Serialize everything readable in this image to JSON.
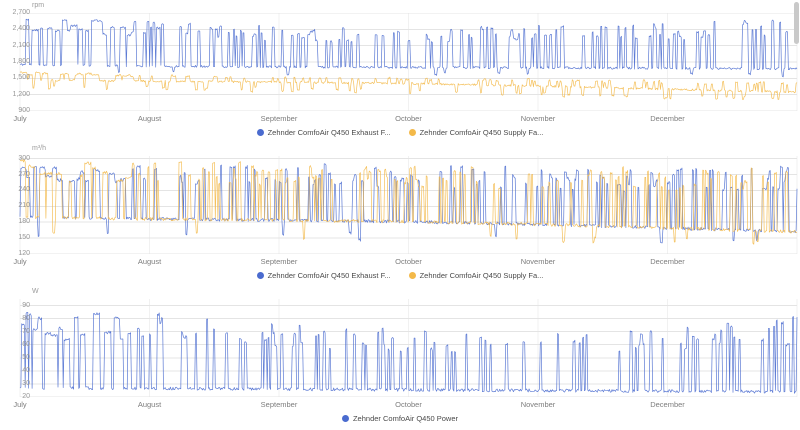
{
  "chart_data": [
    {
      "type": "line",
      "unit": "rpm",
      "ylim": [
        900,
        2700
      ],
      "yticks": [
        2700,
        2400,
        2100,
        1800,
        1500,
        1200,
        900
      ],
      "ytick_labels": [
        "2,700",
        "2,400",
        "2,100",
        "1,800",
        "1,500",
        "1,200",
        "900"
      ],
      "xticks": [
        "July",
        "August",
        "September",
        "October",
        "November",
        "December"
      ],
      "grid": true,
      "legend_position": "bottom",
      "series": [
        {
          "name": "Zehnder ComfoAir Q450 Exhaust F...",
          "color": "#4a6bcf",
          "baseline_by_month": [
            1755,
            1725,
            1710,
            1700,
            1695,
            1685,
            1675
          ],
          "spike_peak_by_month": [
            2650,
            2550,
            2460,
            2420,
            2480,
            2530,
            2610
          ],
          "spike_density_by_month": [
            0.3,
            0.2,
            0.18,
            0.17,
            0.18,
            0.22,
            0.25
          ],
          "dip_floor_by_month": [
            1580,
            1570,
            1560,
            1550,
            1540,
            1530,
            1520
          ],
          "dip_density_by_month": [
            0.02,
            0.015,
            0.015,
            0.015,
            0.015,
            0.02,
            0.02
          ],
          "jitter": 20,
          "seed": 11
        },
        {
          "name": "Zehnder ComfoAir Q450 Supply Fa...",
          "color": "#f3b949",
          "baseline_by_month": [
            1470,
            1450,
            1430,
            1405,
            1360,
            1300,
            1245
          ],
          "spike_peak_by_month": [
            1620,
            1560,
            1530,
            1510,
            1490,
            1460,
            1440
          ],
          "spike_density_by_month": [
            0.28,
            0.12,
            0.1,
            0.1,
            0.1,
            0.12,
            0.12
          ],
          "dip_floor_by_month": [
            1300,
            1280,
            1250,
            1215,
            1175,
            1125,
            1085
          ],
          "dip_density_by_month": [
            0.06,
            0.06,
            0.07,
            0.07,
            0.08,
            0.09,
            0.1
          ],
          "jitter": 18,
          "seed": 22
        }
      ]
    },
    {
      "type": "line",
      "unit": "m³/h",
      "ylim": [
        120,
        305
      ],
      "yticks": [
        300,
        270,
        240,
        210,
        180,
        150,
        120
      ],
      "ytick_labels": [
        "300",
        "270",
        "240",
        "210",
        "180",
        "150",
        "120"
      ],
      "xticks": [
        "July",
        "August",
        "September",
        "October",
        "November",
        "December"
      ],
      "grid": true,
      "legend_position": "bottom",
      "series": [
        {
          "name": "Zehnder ComfoAir Q450 Exhaust F...",
          "color": "#4a6bcf",
          "baseline_by_month": [
            190,
            186,
            184,
            181,
            176,
            169,
            162
          ],
          "spike_peak_by_month": [
            300,
            296,
            292,
            288,
            284,
            282,
            288
          ],
          "spike_density_by_month": [
            0.3,
            0.18,
            0.16,
            0.15,
            0.15,
            0.17,
            0.18
          ],
          "dip_floor_by_month": [
            152,
            150,
            148,
            145,
            142,
            139,
            136
          ],
          "dip_density_by_month": [
            0.02,
            0.02,
            0.02,
            0.02,
            0.02,
            0.02,
            0.02
          ],
          "jitter": 3,
          "seed": 33
        },
        {
          "name": "Zehnder ComfoAir Q450 Supply Fa...",
          "color": "#f3b949",
          "baseline_by_month": [
            190,
            186,
            184,
            181,
            176,
            169,
            162
          ],
          "spike_peak_by_month": [
            300,
            296,
            292,
            288,
            284,
            282,
            288
          ],
          "spike_density_by_month": [
            0.3,
            0.18,
            0.16,
            0.15,
            0.15,
            0.17,
            0.18
          ],
          "dip_floor_by_month": [
            152,
            150,
            148,
            145,
            142,
            139,
            136
          ],
          "dip_density_by_month": [
            0.02,
            0.02,
            0.02,
            0.02,
            0.02,
            0.02,
            0.02
          ],
          "jitter": 3,
          "seed": 44
        }
      ]
    },
    {
      "type": "line",
      "unit": "W",
      "ylim": [
        20,
        95
      ],
      "yticks": [
        90,
        80,
        70,
        60,
        50,
        40,
        30,
        20
      ],
      "ytick_labels": [
        "90",
        "80",
        "70",
        "60",
        "50",
        "40",
        "30",
        "20"
      ],
      "xticks": [
        "July",
        "August",
        "September",
        "October",
        "November",
        "December"
      ],
      "grid": true,
      "legend_position": "bottom",
      "series": [
        {
          "name": "Zehnder ComfoAir Q450 Power",
          "color": "#4a6bcf",
          "baseline_by_month": [
            27,
            26.5,
            26,
            25.5,
            25,
            24.5,
            24
          ],
          "spike_peak_by_month": [
            88,
            84,
            76,
            72,
            70,
            73,
            82
          ],
          "spike_density_by_month": [
            0.3,
            0.14,
            0.12,
            0.12,
            0.12,
            0.14,
            0.16
          ],
          "dip_floor_by_month": [
            22,
            22,
            22,
            22,
            22,
            22,
            22
          ],
          "dip_density_by_month": [
            0,
            0,
            0,
            0,
            0,
            0,
            0
          ],
          "jitter": 1.2,
          "seed": 55
        }
      ]
    }
  ]
}
